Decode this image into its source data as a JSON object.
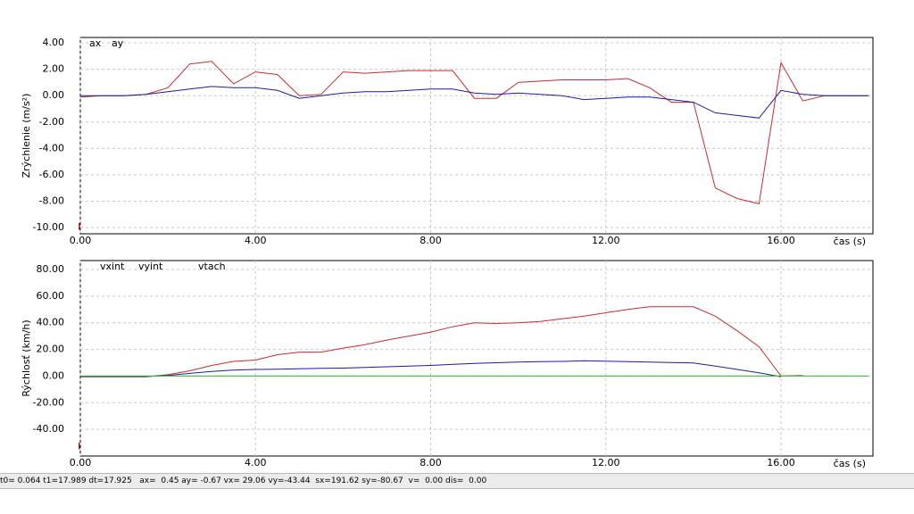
{
  "chart_data": [
    {
      "type": "line",
      "y_label": "Zrýchlenie (m/s²)",
      "x_label": "čas (s)",
      "x": [
        0,
        0.5,
        1,
        1.5,
        2,
        2.5,
        3,
        3.5,
        4,
        4.5,
        5,
        5.5,
        6,
        6.5,
        7,
        7.5,
        8,
        8.5,
        9,
        9.5,
        10,
        10.5,
        11,
        11.5,
        12,
        12.5,
        13,
        13.5,
        14,
        14.5,
        15,
        15.5,
        16,
        16.5,
        17,
        17.5,
        18
      ],
      "series": [
        {
          "name": "ax",
          "color": "#cc2a2a",
          "values": [
            -0.1,
            0,
            0,
            0.1,
            0.6,
            2.4,
            2.6,
            0.9,
            1.8,
            1.6,
            0,
            0.1,
            1.8,
            1.7,
            1.8,
            1.9,
            1.9,
            1.9,
            -0.2,
            -0.2,
            1.0,
            1.1,
            1.2,
            1.2,
            1.2,
            1.3,
            0.6,
            -0.5,
            -0.5,
            -7.0,
            -7.8,
            -8.2,
            2.5,
            -0.4,
            0,
            0,
            0
          ]
        },
        {
          "name": "ay",
          "color": "#1c1ca0",
          "values": [
            0,
            0,
            0,
            0.1,
            0.3,
            0.5,
            0.7,
            0.6,
            0.6,
            0.4,
            -0.2,
            0,
            0.2,
            0.3,
            0.3,
            0.4,
            0.5,
            0.5,
            0.2,
            0.1,
            0.2,
            0.1,
            0,
            -0.3,
            -0.2,
            -0.1,
            -0.1,
            -0.3,
            -0.5,
            -1.3,
            -1.5,
            -1.7,
            0.4,
            0.1,
            0,
            0,
            0
          ]
        }
      ],
      "xlim": [
        0,
        18.1
      ],
      "ylim": [
        -10.47,
        4.41
      ],
      "xticks": [
        {
          "value": 0,
          "label": "0.00"
        },
        {
          "value": 4,
          "label": "4.00"
        },
        {
          "value": 8,
          "label": "8.00"
        },
        {
          "value": 12,
          "label": "12.00"
        },
        {
          "value": 16,
          "label": "16.00"
        }
      ],
      "yticks": [
        {
          "value": -10,
          "label": "-10.00"
        },
        {
          "value": -8,
          "label": "-8.00"
        },
        {
          "value": -6,
          "label": "-6.00"
        },
        {
          "value": -4,
          "label": "-4.00"
        },
        {
          "value": -2,
          "label": "-2.00"
        },
        {
          "value": 0,
          "label": "0.00"
        },
        {
          "value": 2,
          "label": "2.00"
        },
        {
          "value": 4,
          "label": "4.00"
        }
      ],
      "grid": true
    },
    {
      "type": "line",
      "y_label": "Rýchlosť (km/h)",
      "x_label": "čas (s)",
      "x": [
        0,
        0.5,
        1,
        1.5,
        2,
        2.5,
        3,
        3.5,
        4,
        4.5,
        5,
        5.5,
        6,
        6.5,
        7,
        7.5,
        8,
        8.5,
        9,
        9.5,
        10,
        10.5,
        11,
        11.5,
        12,
        12.5,
        13,
        13.5,
        14,
        14.5,
        15,
        15.5,
        16,
        16.5,
        17,
        17.5,
        18
      ],
      "series": [
        {
          "name": "vxint",
          "color": "#cc2a2a",
          "values": [
            -0.5,
            -0.5,
            -0.5,
            -0.5,
            1,
            4,
            8,
            11,
            12,
            16,
            18,
            18,
            21,
            23.5,
            27,
            30,
            33,
            37,
            40,
            39.5,
            40,
            41,
            43,
            45,
            47.5,
            50,
            52,
            52,
            52,
            45,
            34,
            22,
            0,
            0.5,
            null,
            null,
            null
          ]
        },
        {
          "name": "vyint",
          "color": "#1c1ca0",
          "values": [
            -0.3,
            -0.3,
            -0.3,
            -0.3,
            0.5,
            2,
            3.5,
            4.5,
            5,
            5.2,
            5.5,
            5.8,
            6,
            6.5,
            7,
            7.5,
            8,
            8.8,
            9.5,
            10,
            10.5,
            10.8,
            11,
            11.5,
            11.2,
            10.8,
            10.5,
            10.2,
            9.8,
            7.5,
            5,
            2.5,
            -0.5,
            null,
            null,
            null,
            null
          ]
        },
        {
          "name": "vtach",
          "color": "#22c022",
          "values": [
            0,
            0,
            0,
            0,
            0,
            0,
            0,
            0,
            0,
            0,
            0,
            0,
            0,
            0,
            0,
            0,
            0,
            0,
            0,
            0,
            0,
            0,
            0,
            0,
            0,
            0,
            0,
            0,
            0,
            0,
            0,
            0,
            0,
            0,
            0,
            0,
            0
          ]
        }
      ],
      "xlim": [
        0,
        18.1
      ],
      "ylim": [
        -60,
        86.7
      ],
      "xticks": [
        {
          "value": 0,
          "label": "0.00"
        },
        {
          "value": 4,
          "label": "4.00"
        },
        {
          "value": 8,
          "label": "8.00"
        },
        {
          "value": 12,
          "label": "12.00"
        },
        {
          "value": 16,
          "label": "16.00"
        }
      ],
      "yticks": [
        {
          "value": -40,
          "label": "-40.00"
        },
        {
          "value": -20,
          "label": "-20.00"
        },
        {
          "value": 0,
          "label": "0.00"
        },
        {
          "value": 20,
          "label": "20.00"
        },
        {
          "value": 40,
          "label": "40.00"
        },
        {
          "value": 60,
          "label": "60.00"
        },
        {
          "value": 80,
          "label": "80.00"
        }
      ],
      "grid": true
    }
  ],
  "status_bar": {
    "text": "t0= 0.064 t1=17.989 dt=17.925   ax=  0.45 ay= -0.67 vx= 29.06 vy=-43.44  sx=191.62 sy=-80.67  v=  0.00 dis=  0.00"
  }
}
